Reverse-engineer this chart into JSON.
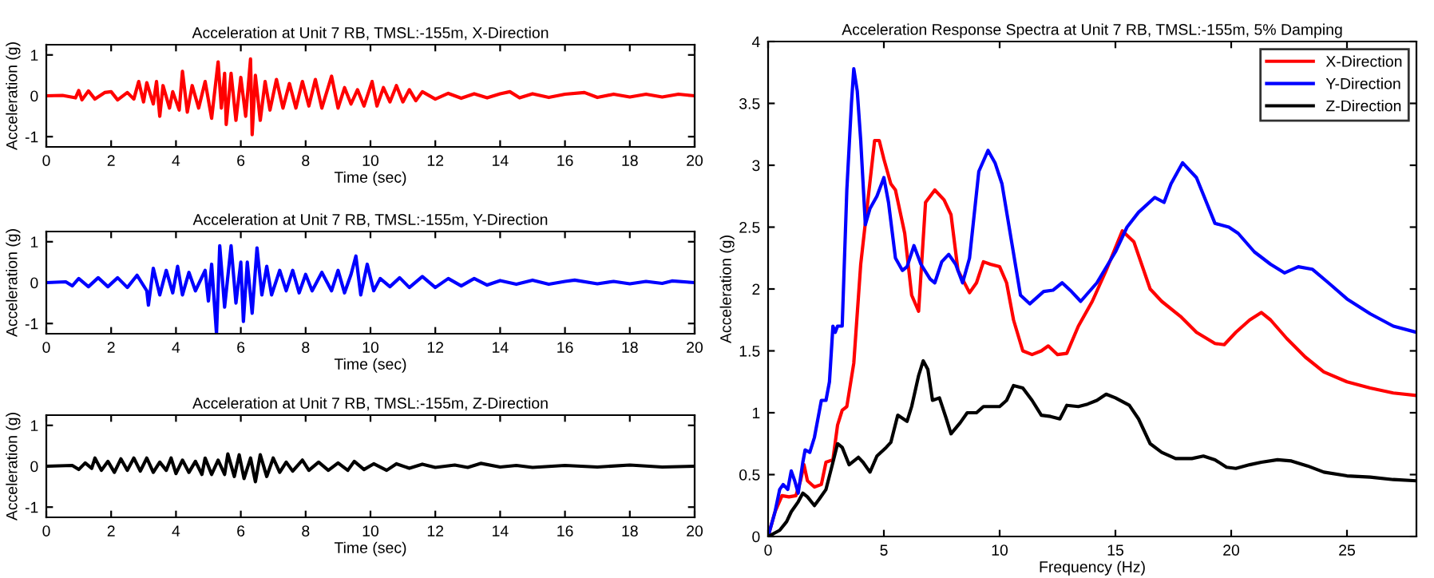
{
  "chart_data": [
    {
      "type": "line",
      "title": "Acceleration at Unit 7 RB, TMSL:-155m, X-Direction",
      "xlabel": "Time (sec)",
      "ylabel": "Acceleration (g)",
      "xlim": [
        0,
        20
      ],
      "ylim": [
        -1.25,
        1.25
      ],
      "xticks": [
        0,
        2,
        4,
        6,
        8,
        10,
        12,
        14,
        16,
        18,
        20
      ],
      "yticks": [
        -1,
        0,
        1
      ],
      "series": [
        {
          "color": "#ff0000",
          "x": [
            0,
            0.5,
            0.9,
            1.0,
            1.1,
            1.3,
            1.5,
            1.8,
            2.0,
            2.2,
            2.5,
            2.7,
            2.85,
            3.0,
            3.1,
            3.3,
            3.4,
            3.5,
            3.6,
            3.8,
            3.9,
            4.1,
            4.2,
            4.35,
            4.5,
            4.7,
            4.9,
            5.1,
            5.3,
            5.4,
            5.5,
            5.55,
            5.7,
            5.85,
            6.0,
            6.15,
            6.3,
            6.35,
            6.45,
            6.6,
            6.75,
            6.9,
            7.1,
            7.3,
            7.5,
            7.7,
            7.9,
            8.1,
            8.3,
            8.5,
            8.8,
            9.0,
            9.2,
            9.4,
            9.6,
            9.8,
            10.05,
            10.2,
            10.4,
            10.6,
            10.8,
            11.0,
            11.2,
            11.4,
            11.6,
            12,
            12.4,
            12.8,
            13.2,
            13.6,
            14.0,
            14.3,
            14.6,
            15,
            15.5,
            16,
            16.6,
            17,
            17.5,
            18,
            18.5,
            19,
            19.5,
            20
          ],
          "values": [
            0,
            0.01,
            -0.05,
            0.13,
            -0.1,
            0.12,
            -0.08,
            0.08,
            0.1,
            -0.1,
            0.08,
            -0.08,
            0.35,
            -0.15,
            0.32,
            -0.2,
            0.35,
            -0.5,
            0.25,
            -0.3,
            0.1,
            -0.35,
            0.6,
            -0.4,
            0.25,
            -0.3,
            0.35,
            -0.55,
            0.83,
            -0.3,
            0.55,
            -0.7,
            0.55,
            -0.6,
            0.45,
            -0.5,
            0.9,
            -0.95,
            0.5,
            -0.6,
            0.35,
            -0.35,
            0.4,
            -0.3,
            0.3,
            -0.3,
            0.35,
            -0.25,
            0.4,
            -0.3,
            0.48,
            -0.3,
            0.2,
            -0.2,
            0.15,
            -0.25,
            0.35,
            -0.25,
            0.2,
            -0.15,
            0.25,
            -0.15,
            0.15,
            -0.12,
            0.1,
            -0.08,
            0.06,
            -0.06,
            0.05,
            -0.05,
            0.05,
            0.1,
            -0.05,
            0.05,
            -0.04,
            0.04,
            0.08,
            -0.04,
            0.04,
            -0.03,
            0.04,
            -0.03,
            0.04,
            0
          ]
        }
      ]
    },
    {
      "type": "line",
      "title": "Acceleration at Unit 7 RB, TMSL:-155m, Y-Direction",
      "xlabel": "Time (sec)",
      "ylabel": "Acceleration (g)",
      "xlim": [
        0,
        20
      ],
      "ylim": [
        -1.25,
        1.25
      ],
      "xticks": [
        0,
        2,
        4,
        6,
        8,
        10,
        12,
        14,
        16,
        18,
        20
      ],
      "yticks": [
        -1,
        0,
        1
      ],
      "series": [
        {
          "color": "#0000ff",
          "x": [
            0,
            0.6,
            0.8,
            1.0,
            1.3,
            1.6,
            1.9,
            2.2,
            2.5,
            2.8,
            3.1,
            3.15,
            3.3,
            3.5,
            3.7,
            3.9,
            4.05,
            4.2,
            4.4,
            4.6,
            4.9,
            5.0,
            5.1,
            5.25,
            5.35,
            5.5,
            5.7,
            5.85,
            6.0,
            6.08,
            6.2,
            6.35,
            6.5,
            6.65,
            6.8,
            6.95,
            7.2,
            7.4,
            7.6,
            7.8,
            8.0,
            8.2,
            8.5,
            8.8,
            9.0,
            9.2,
            9.4,
            9.55,
            9.7,
            9.9,
            10.1,
            10.3,
            10.6,
            10.9,
            11.2,
            11.6,
            12,
            12.4,
            12.8,
            13.2,
            13.6,
            14,
            14.5,
            15,
            15.5,
            16,
            16.3,
            17,
            17.5,
            18,
            18.5,
            19,
            19.3,
            20
          ],
          "values": [
            0,
            0.02,
            -0.08,
            0.1,
            -0.1,
            0.12,
            -0.1,
            0.12,
            -0.12,
            0.18,
            -0.2,
            -0.55,
            0.35,
            -0.3,
            0.3,
            -0.25,
            0.4,
            -0.3,
            0.25,
            -0.2,
            0.3,
            -0.45,
            0.45,
            -1.25,
            0.9,
            -0.6,
            0.9,
            -0.5,
            0.5,
            -0.95,
            0.5,
            -0.75,
            0.85,
            -0.3,
            0.4,
            -0.3,
            0.3,
            -0.2,
            0.3,
            -0.25,
            0.2,
            -0.2,
            0.25,
            -0.2,
            0.3,
            -0.25,
            0.2,
            0.65,
            -0.3,
            0.45,
            -0.2,
            0.1,
            -0.1,
            0.12,
            -0.12,
            0.15,
            -0.12,
            0.1,
            -0.08,
            0.1,
            -0.06,
            0.05,
            -0.04,
            0.06,
            -0.04,
            0.03,
            0.06,
            -0.03,
            0.03,
            -0.03,
            0.03,
            -0.02,
            0.04,
            0
          ]
        }
      ]
    },
    {
      "type": "line",
      "title": "Acceleration at Unit 7 RB, TMSL:-155m, Z-Direction",
      "xlabel": "Time (sec)",
      "ylabel": "Acceleration (g)",
      "xlim": [
        0,
        20
      ],
      "ylim": [
        -1.25,
        1.25
      ],
      "xticks": [
        0,
        2,
        4,
        6,
        8,
        10,
        12,
        14,
        16,
        18,
        20
      ],
      "yticks": [
        -1,
        0,
        1
      ],
      "series": [
        {
          "color": "#000000",
          "x": [
            0,
            0.8,
            1.0,
            1.2,
            1.4,
            1.5,
            1.7,
            1.9,
            2.1,
            2.3,
            2.5,
            2.7,
            2.9,
            3.1,
            3.3,
            3.5,
            3.7,
            3.85,
            4.0,
            4.2,
            4.4,
            4.6,
            4.8,
            4.9,
            5.1,
            5.3,
            5.5,
            5.6,
            5.8,
            5.95,
            6.1,
            6.3,
            6.45,
            6.6,
            6.8,
            7.0,
            7.2,
            7.4,
            7.6,
            7.9,
            8.1,
            8.4,
            8.7,
            9.0,
            9.3,
            9.5,
            9.8,
            10.1,
            10.5,
            10.8,
            11.2,
            11.6,
            12,
            12.6,
            13.0,
            13.4,
            14,
            14.5,
            15,
            16,
            17,
            18,
            19,
            20
          ],
          "values": [
            0,
            0.02,
            -0.08,
            0.08,
            -0.05,
            0.2,
            -0.1,
            0.12,
            -0.15,
            0.18,
            -0.1,
            0.2,
            -0.12,
            0.2,
            -0.15,
            0.1,
            -0.1,
            0.2,
            -0.18,
            0.15,
            -0.15,
            0.12,
            -0.2,
            0.2,
            -0.2,
            0.15,
            -0.2,
            0.3,
            -0.25,
            0.28,
            -0.3,
            0.2,
            -0.38,
            0.28,
            -0.25,
            0.2,
            -0.15,
            0.1,
            -0.12,
            0.15,
            -0.1,
            0.1,
            -0.1,
            0.08,
            -0.1,
            0.12,
            -0.08,
            0.06,
            -0.1,
            0.06,
            -0.05,
            0.05,
            -0.03,
            0.03,
            -0.03,
            0.07,
            -0.02,
            0.02,
            -0.03,
            0.02,
            -0.02,
            0.03,
            -0.02,
            0
          ]
        }
      ]
    },
    {
      "type": "line",
      "title": "Acceleration Response Spectra at Unit 7 RB, TMSL:-155m, 5% Damping",
      "xlabel": "Frequency (Hz)",
      "ylabel": "Acceleration (g)",
      "xlim": [
        0,
        28
      ],
      "ylim": [
        0,
        4
      ],
      "xticks": [
        0,
        5,
        10,
        15,
        20,
        25
      ],
      "yticks": [
        0,
        0.5,
        1,
        1.5,
        2,
        2.5,
        3,
        3.5,
        4
      ],
      "legend": "top right",
      "series": [
        {
          "name": "X-Direction",
          "color": "#ff0000",
          "x": [
            0,
            0.3,
            0.6,
            0.9,
            1.2,
            1.4,
            1.55,
            1.7,
            2.0,
            2.3,
            2.5,
            2.8,
            3.0,
            3.2,
            3.4,
            3.7,
            4.0,
            4.3,
            4.6,
            4.8,
            5.0,
            5.3,
            5.5,
            5.9,
            6.2,
            6.5,
            6.8,
            7.2,
            7.6,
            7.9,
            8.2,
            8.7,
            9.0,
            9.3,
            9.6,
            10.0,
            10.3,
            10.6,
            11.0,
            11.4,
            11.8,
            12.1,
            12.5,
            12.9,
            13.4,
            14.0,
            14.6,
            15.3,
            15.8,
            16.5,
            17.0,
            17.8,
            18.5,
            19.3,
            19.7,
            20.2,
            20.8,
            21.3,
            21.7,
            22.4,
            23.2,
            24,
            25,
            26,
            27,
            28
          ],
          "values": [
            0,
            0.2,
            0.33,
            0.32,
            0.33,
            0.45,
            0.58,
            0.45,
            0.4,
            0.42,
            0.6,
            0.62,
            0.9,
            1.02,
            1.05,
            1.4,
            2.2,
            2.7,
            3.2,
            3.2,
            3.05,
            2.85,
            2.8,
            2.45,
            1.95,
            1.82,
            2.7,
            2.8,
            2.72,
            2.6,
            2.15,
            1.97,
            2.05,
            2.22,
            2.2,
            2.18,
            2.05,
            1.75,
            1.5,
            1.47,
            1.5,
            1.54,
            1.47,
            1.48,
            1.7,
            1.9,
            2.15,
            2.47,
            2.38,
            2.0,
            1.9,
            1.78,
            1.65,
            1.56,
            1.55,
            1.65,
            1.75,
            1.81,
            1.75,
            1.6,
            1.45,
            1.33,
            1.25,
            1.2,
            1.16,
            1.14
          ]
        },
        {
          "name": "Y-Direction",
          "color": "#0000ff",
          "x": [
            0,
            0.3,
            0.5,
            0.65,
            0.85,
            1.0,
            1.15,
            1.3,
            1.5,
            1.6,
            1.8,
            2.0,
            2.3,
            2.5,
            2.65,
            2.8,
            2.9,
            3.0,
            3.2,
            3.4,
            3.6,
            3.7,
            3.85,
            4.0,
            4.2,
            4.4,
            4.7,
            5.0,
            5.2,
            5.5,
            5.8,
            6.0,
            6.3,
            6.6,
            7.0,
            7.2,
            7.5,
            7.8,
            8.1,
            8.4,
            8.7,
            9.1,
            9.5,
            9.8,
            10.1,
            10.5,
            10.9,
            11.3,
            11.9,
            12.3,
            12.7,
            13.1,
            13.5,
            14.2,
            15.0,
            15.5,
            16.0,
            16.7,
            17.1,
            17.4,
            17.9,
            18.5,
            19.3,
            19.9,
            20.3,
            21.0,
            21.7,
            22.3,
            22.9,
            23.5,
            24.2,
            25,
            26,
            27,
            28
          ],
          "values": [
            0,
            0.2,
            0.38,
            0.42,
            0.38,
            0.53,
            0.45,
            0.35,
            0.6,
            0.7,
            0.68,
            0.8,
            1.1,
            1.1,
            1.25,
            1.7,
            1.65,
            1.7,
            1.7,
            2.8,
            3.5,
            3.78,
            3.6,
            3.2,
            2.52,
            2.65,
            2.75,
            2.9,
            2.7,
            2.25,
            2.15,
            2.18,
            2.35,
            2.2,
            2.08,
            2.05,
            2.22,
            2.28,
            2.2,
            2.05,
            2.25,
            2.95,
            3.12,
            3.02,
            2.85,
            2.4,
            1.95,
            1.88,
            1.98,
            1.99,
            2.05,
            1.98,
            1.9,
            2.05,
            2.3,
            2.5,
            2.62,
            2.74,
            2.7,
            2.85,
            3.02,
            2.9,
            2.53,
            2.5,
            2.45,
            2.3,
            2.2,
            2.13,
            2.18,
            2.16,
            2.05,
            1.92,
            1.8,
            1.7,
            1.65
          ]
        },
        {
          "name": "Z-Direction",
          "color": "#000000",
          "x": [
            0,
            0.5,
            0.8,
            1.0,
            1.3,
            1.5,
            1.7,
            2.0,
            2.2,
            2.5,
            2.8,
            3.0,
            3.2,
            3.5,
            3.9,
            4.1,
            4.4,
            4.7,
            5.1,
            5.3,
            5.6,
            6.0,
            6.2,
            6.5,
            6.7,
            6.9,
            7.1,
            7.4,
            7.7,
            7.9,
            8.3,
            8.6,
            9.0,
            9.3,
            9.6,
            10.0,
            10.3,
            10.6,
            11.0,
            11.4,
            11.8,
            12.2,
            12.6,
            12.9,
            13.4,
            13.8,
            14.2,
            14.6,
            15.0,
            15.6,
            16.0,
            16.5,
            17.0,
            17.6,
            18.3,
            18.8,
            19.3,
            19.8,
            20.2,
            20.8,
            21.3,
            22.0,
            22.6,
            23.3,
            24,
            25,
            26,
            27,
            28
          ],
          "values": [
            0,
            0.05,
            0.12,
            0.2,
            0.28,
            0.35,
            0.32,
            0.25,
            0.3,
            0.38,
            0.6,
            0.75,
            0.72,
            0.58,
            0.64,
            0.6,
            0.52,
            0.65,
            0.72,
            0.76,
            0.98,
            0.93,
            1.05,
            1.3,
            1.42,
            1.35,
            1.1,
            1.12,
            0.95,
            0.83,
            0.92,
            1.0,
            1.0,
            1.05,
            1.05,
            1.05,
            1.1,
            1.22,
            1.2,
            1.1,
            0.98,
            0.97,
            0.95,
            1.06,
            1.05,
            1.07,
            1.1,
            1.15,
            1.12,
            1.06,
            0.95,
            0.75,
            0.68,
            0.63,
            0.63,
            0.65,
            0.62,
            0.56,
            0.55,
            0.58,
            0.6,
            0.62,
            0.61,
            0.57,
            0.52,
            0.49,
            0.48,
            0.46,
            0.45
          ]
        }
      ]
    }
  ]
}
